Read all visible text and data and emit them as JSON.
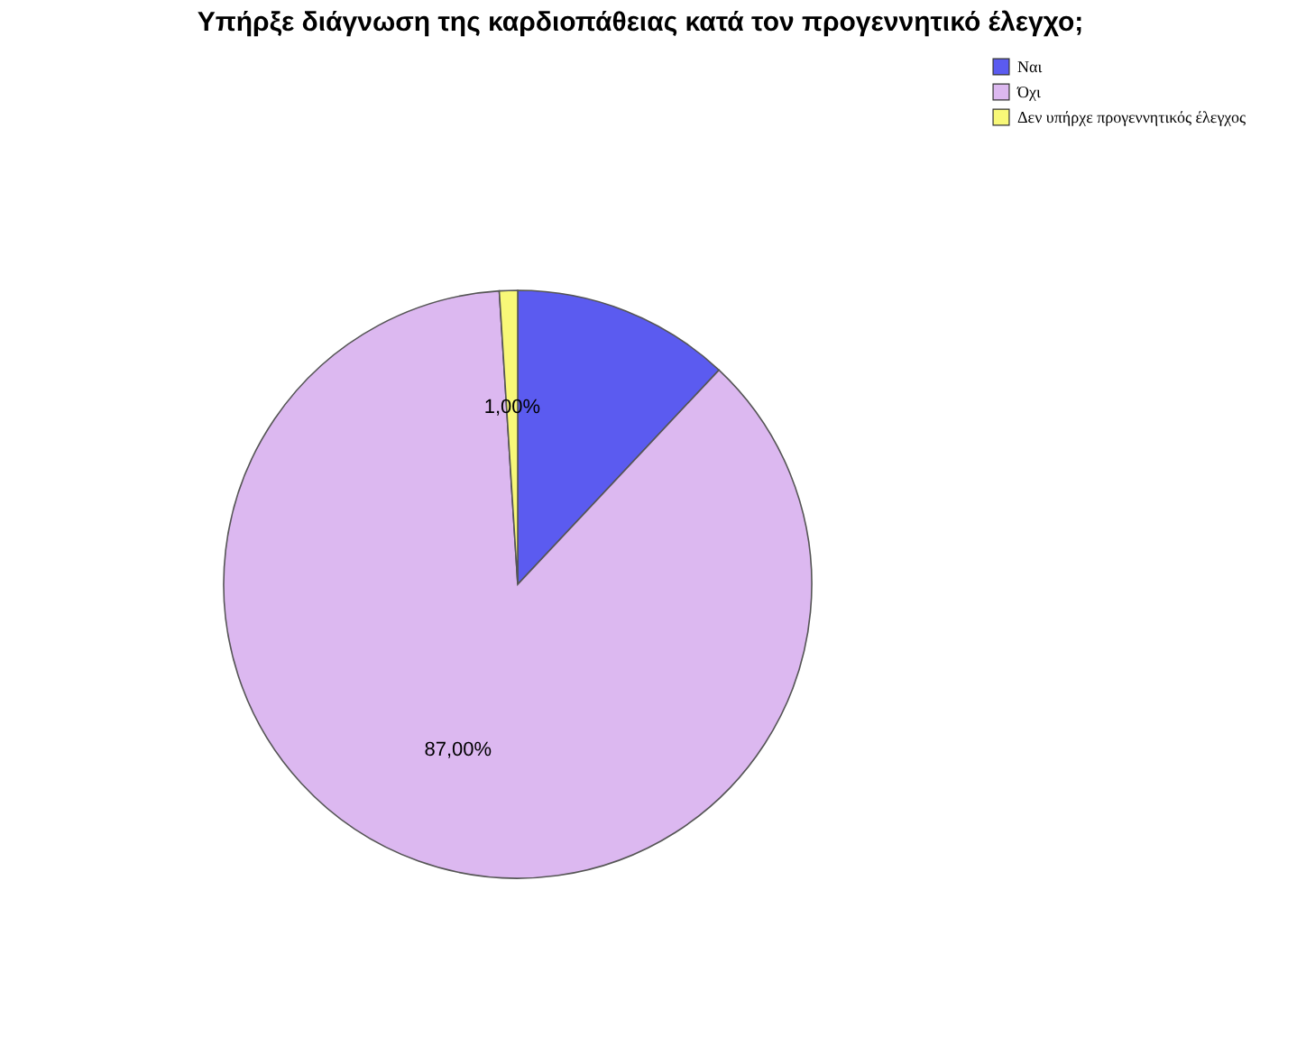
{
  "chart_data": {
    "type": "pie",
    "title": "Υπήρξε διάγνωση της καρδιοπάθειας κατά τον προγεννητικό έλεγχο;",
    "categories": [
      "Ναι",
      "Όχι",
      "Δεν υπήρχε προγεννητικός έλεγχος"
    ],
    "values": [
      12,
      87,
      1
    ],
    "colors": [
      "#5b5bf0",
      "#dcb8f0",
      "#f8f878"
    ],
    "value_labels": [
      null,
      "87,00%",
      "1,00%"
    ],
    "legend": "top right"
  }
}
